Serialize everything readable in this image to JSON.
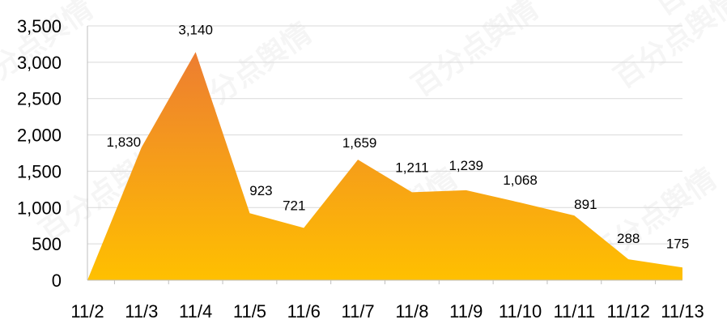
{
  "watermark": "百分点舆情",
  "chart_data": {
    "type": "area",
    "categories": [
      "11/2",
      "11/3",
      "11/4",
      "11/5",
      "11/6",
      "11/7",
      "11/8",
      "11/9",
      "11/10",
      "11/11",
      "11/12",
      "11/13"
    ],
    "series": [
      {
        "values": [
          0,
          1830,
          3140,
          923,
          721,
          1659,
          1211,
          1239,
          1068,
          891,
          288,
          175
        ],
        "data_labels": [
          "",
          "1,830",
          "3,140",
          "923",
          "721",
          "1,659",
          "1,211",
          "1,239",
          "1,068",
          "891",
          "288",
          "175"
        ]
      }
    ],
    "yticks": [
      0,
      500,
      1000,
      1500,
      2000,
      2500,
      3000,
      3500
    ],
    "ytick_labels": [
      "0",
      "500",
      "1,000",
      "1,500",
      "2,000",
      "2,500",
      "3,000",
      "3,500"
    ],
    "ylim": [
      0,
      3500
    ],
    "grid": true,
    "legend": "none",
    "colors": {
      "fill_top": "#ed7d31",
      "fill_bottom": "#ffc000",
      "grid": "#d9d9d9",
      "axis": "#bfbfbf"
    },
    "title": "",
    "xlabel": "",
    "ylabel": ""
  }
}
